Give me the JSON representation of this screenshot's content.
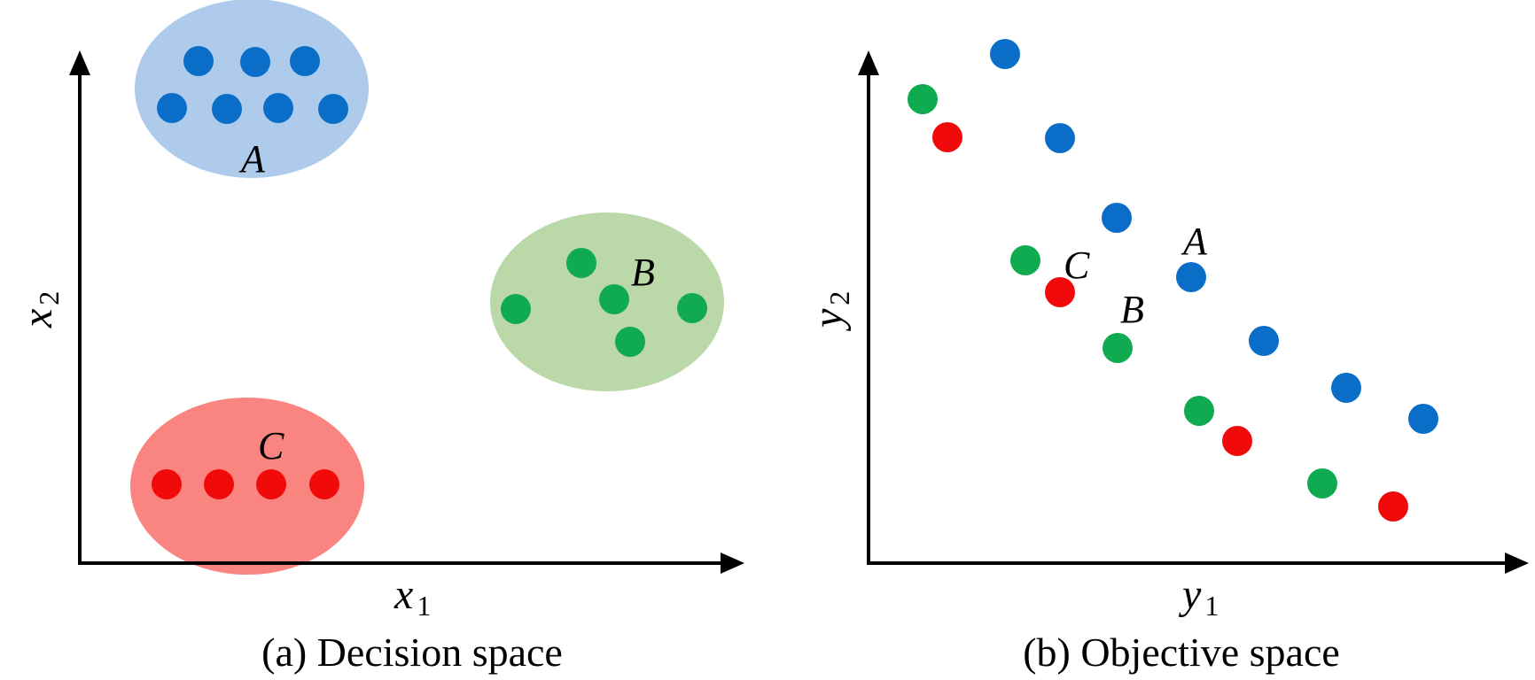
{
  "colors": {
    "blue_point": "#0a6ec8",
    "green_point": "#10aa50",
    "red_point": "#f00a0a",
    "blue_region": "#aecbeb",
    "green_region": "#bad8a8",
    "red_region": "#fa8580",
    "axis": "#000000"
  },
  "decision_space": {
    "caption": "(a) Decision space",
    "x_axis": {
      "main": "x",
      "sub": "1"
    },
    "y_axis": {
      "main": "x",
      "sub": "2"
    },
    "clusters": [
      {
        "label": "A",
        "color": "blue",
        "point_count": 7
      },
      {
        "label": "B",
        "color": "green",
        "point_count": 5
      },
      {
        "label": "C",
        "color": "red",
        "point_count": 4
      }
    ]
  },
  "objective_space": {
    "caption": "(b) Objective space",
    "x_axis": {
      "main": "y",
      "sub": "1"
    },
    "y_axis": {
      "main": "y",
      "sub": "2"
    },
    "series": [
      {
        "label": "A",
        "color": "blue",
        "point_count": 7
      },
      {
        "label": "B",
        "color": "green",
        "point_count": 5
      },
      {
        "label": "C",
        "color": "red",
        "point_count": 4
      }
    ]
  }
}
